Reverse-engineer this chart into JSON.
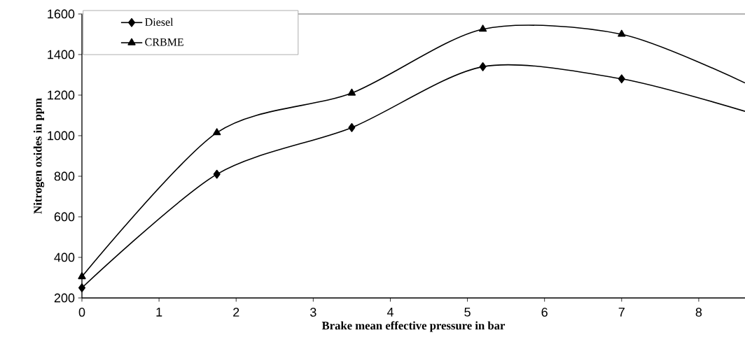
{
  "chart_data": {
    "type": "line",
    "xlabel": "Brake mean effective pressure in bar",
    "ylabel": "Nitrogen oxides in ppm",
    "xlim": [
      0,
      8.6
    ],
    "xticks": [
      0,
      1,
      2,
      3,
      4,
      5,
      6,
      7,
      8
    ],
    "ylim": [
      200,
      1600
    ],
    "yticks": [
      200,
      400,
      600,
      800,
      1000,
      1200,
      1400,
      1600
    ],
    "legend": "top left",
    "grid": false,
    "line_style": "solid",
    "series": [
      {
        "name": "Diesel",
        "color": "#000000",
        "marker": "diamond",
        "x": [
          0,
          1.75,
          3.5,
          5.2,
          7,
          8.6
        ],
        "values": [
          250,
          810,
          1040,
          1340,
          1280,
          1120
        ]
      },
      {
        "name": "CRBME",
        "color": "#000000",
        "marker": "triangle",
        "x": [
          0,
          1.75,
          3.5,
          5.2,
          7,
          8.6
        ],
        "values": [
          305,
          1015,
          1210,
          1525,
          1500,
          1260
        ]
      }
    ]
  }
}
